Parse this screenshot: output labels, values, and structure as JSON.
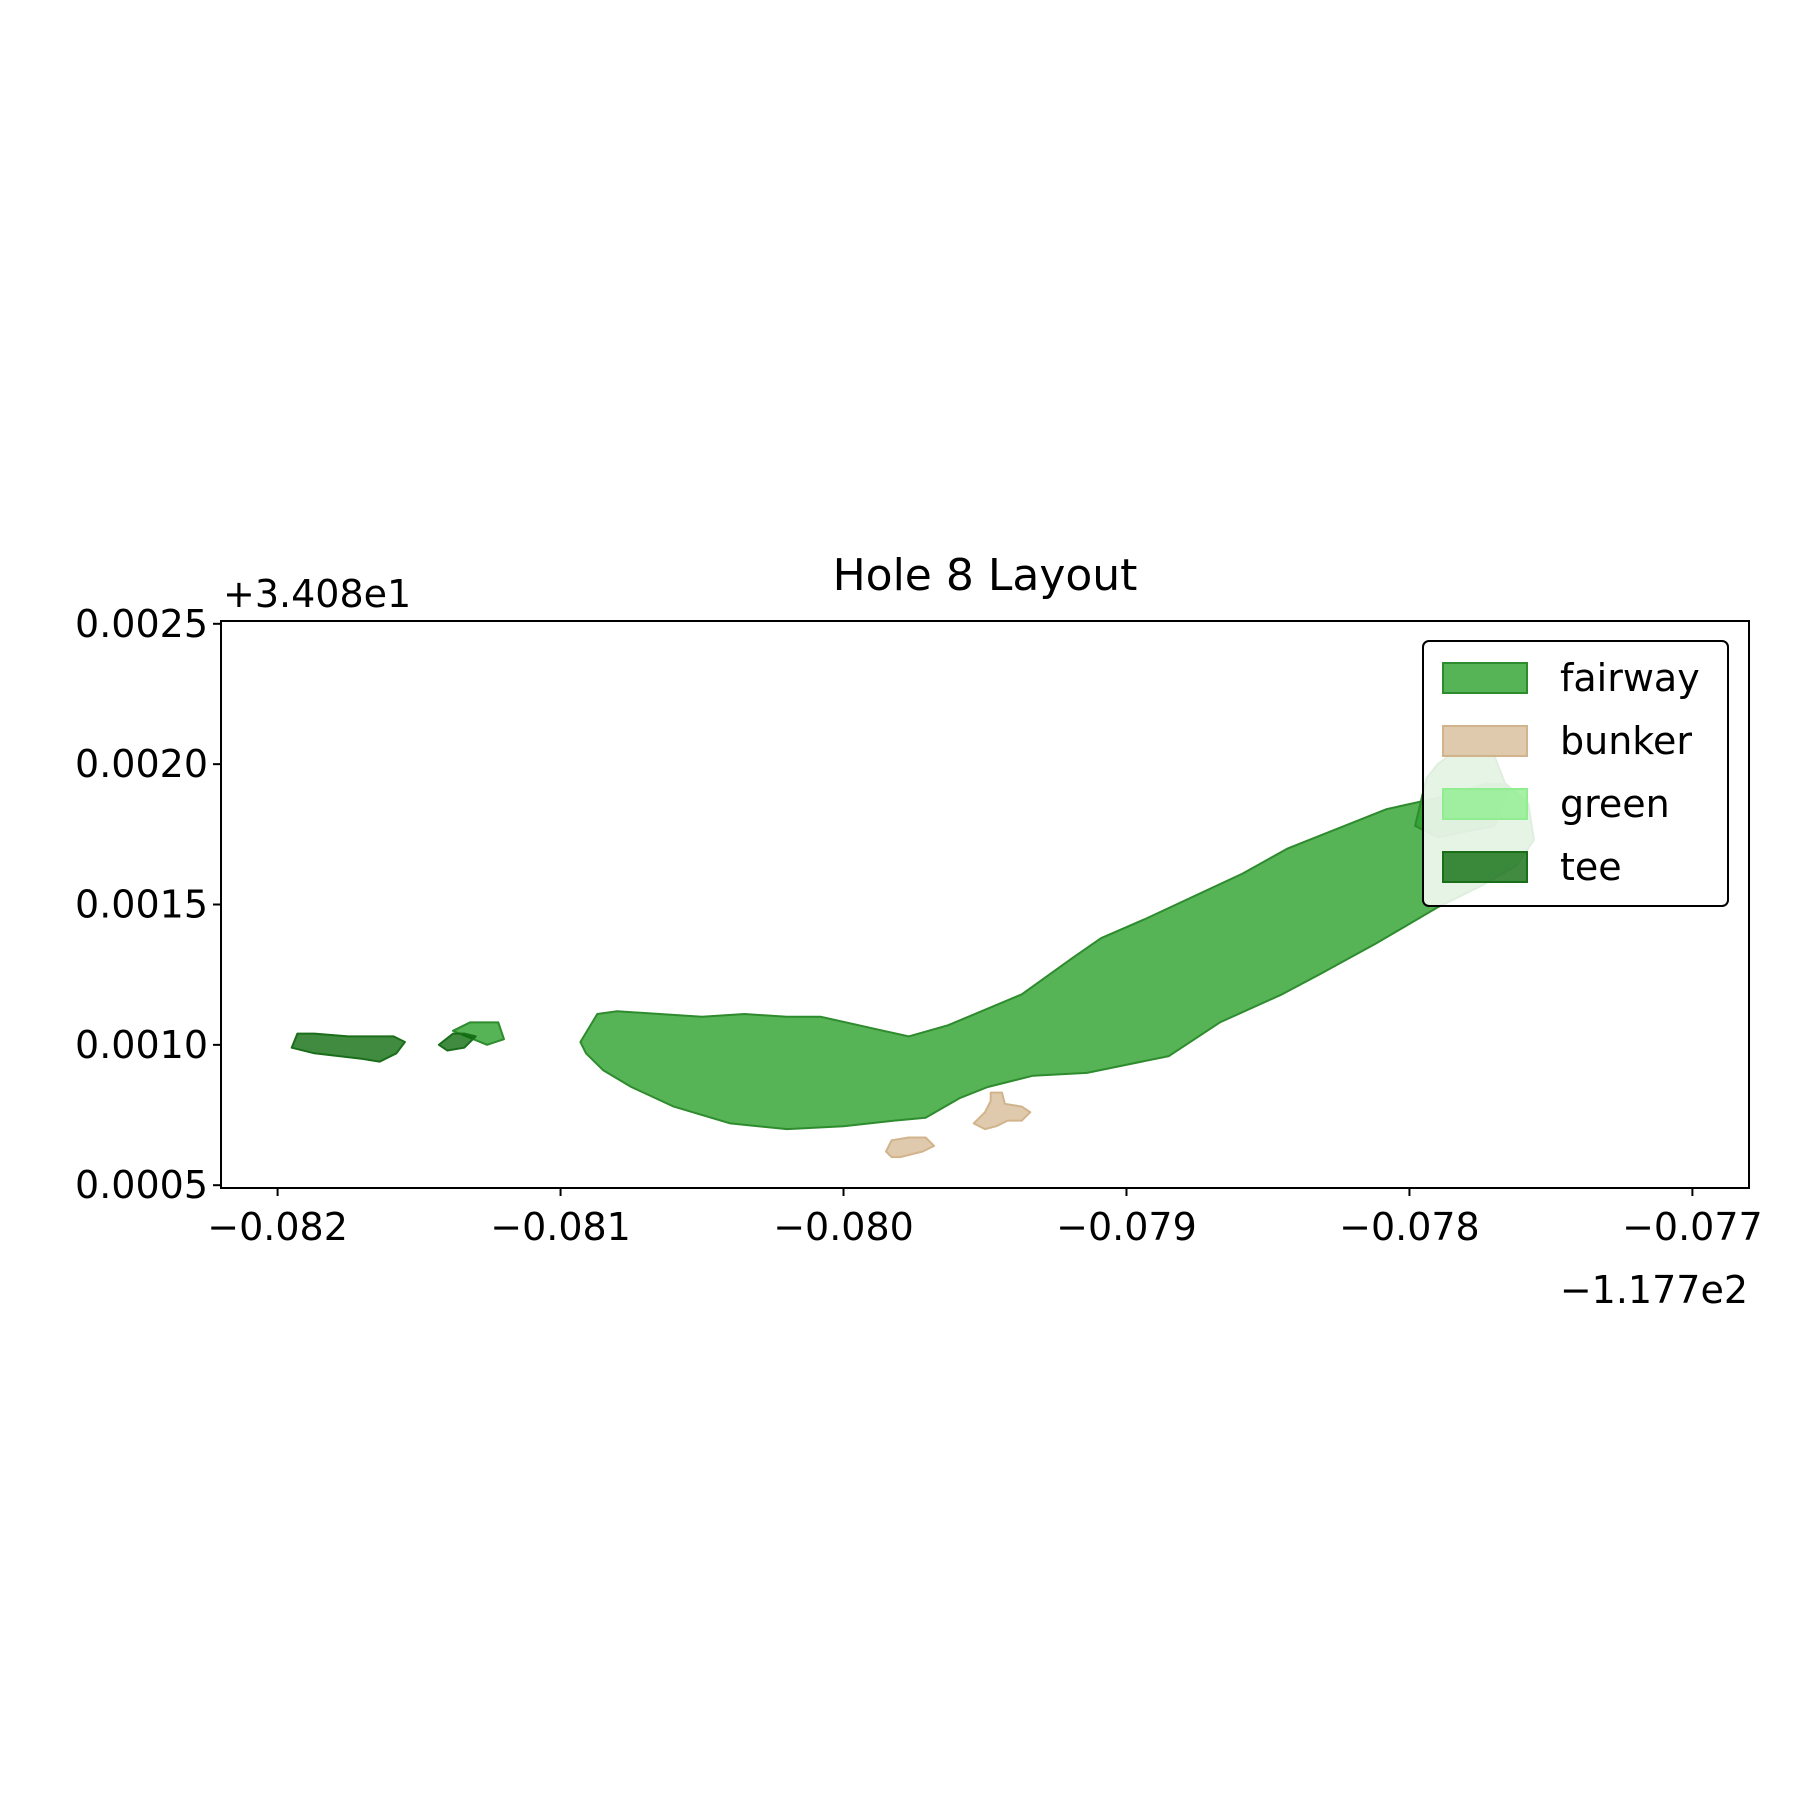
{
  "chart_data": {
    "type": "area",
    "title": "Hole 8 Layout",
    "xlabel": "",
    "ylabel": "",
    "x_offset_label": "−1.177e2",
    "y_offset_label": "+3.408e1",
    "xlim": [
      -0.0822,
      -0.0768
    ],
    "ylim": [
      0.00049,
      0.00251
    ],
    "x_ticks": [
      -0.082,
      -0.081,
      -0.08,
      -0.079,
      -0.078,
      -0.077
    ],
    "x_tick_labels": [
      "−0.082",
      "−0.081",
      "−0.080",
      "−0.079",
      "−0.078",
      "−0.077"
    ],
    "y_ticks": [
      0.0005,
      0.001,
      0.0015,
      0.002,
      0.0025
    ],
    "y_tick_labels": [
      "0.0005",
      "0.0010",
      "0.0015",
      "0.0020",
      "0.0025"
    ],
    "grid": false,
    "legend_position": "top-right",
    "legend": [
      {
        "label": "fairway",
        "fill": "#2ca02c",
        "edge": "#2e8b2e",
        "opacity": 0.8
      },
      {
        "label": "bunker",
        "fill": "#d2b48c",
        "edge": "#d2b48c",
        "opacity": 0.7
      },
      {
        "label": "green",
        "fill": "#90ee90",
        "edge": "#90ee90",
        "opacity": 0.8
      },
      {
        "label": "tee",
        "fill": "#006400",
        "edge": "#1a6e1a",
        "opacity": 0.75
      }
    ],
    "series": [
      {
        "name": "fairway",
        "polygons": [
          [
            [
              -0.08093,
              0.00101
            ],
            [
              -0.08087,
              0.00111
            ],
            [
              -0.0808,
              0.00112
            ],
            [
              -0.0805,
              0.0011
            ],
            [
              -0.08035,
              0.00111
            ],
            [
              -0.0802,
              0.0011
            ],
            [
              -0.08008,
              0.0011
            ],
            [
              -0.07977,
              0.00103
            ],
            [
              -0.07963,
              0.00107
            ],
            [
              -0.07937,
              0.00118
            ],
            [
              -0.07919,
              0.00131
            ],
            [
              -0.07909,
              0.00138
            ],
            [
              -0.07893,
              0.00145
            ],
            [
              -0.07859,
              0.00161
            ],
            [
              -0.07843,
              0.0017
            ],
            [
              -0.07818,
              0.0018
            ],
            [
              -0.07808,
              0.00184
            ],
            [
              -0.0779,
              0.00188
            ],
            [
              -0.07773,
              0.00193
            ],
            [
              -0.07766,
              0.00193
            ],
            [
              -0.07758,
              0.00186
            ],
            [
              -0.07756,
              0.00173
            ],
            [
              -0.07762,
              0.00164
            ],
            [
              -0.07774,
              0.00157
            ],
            [
              -0.0779,
              0.00149
            ],
            [
              -0.07812,
              0.00136
            ],
            [
              -0.07832,
              0.00125
            ],
            [
              -0.07845,
              0.00118
            ],
            [
              -0.07867,
              0.00108
            ],
            [
              -0.07885,
              0.00096
            ],
            [
              -0.07914,
              0.0009
            ],
            [
              -0.07933,
              0.00089
            ],
            [
              -0.07949,
              0.00085
            ],
            [
              -0.07959,
              0.00081
            ],
            [
              -0.07971,
              0.00074
            ],
            [
              -0.07982,
              0.00073
            ],
            [
              -0.08,
              0.00071
            ],
            [
              -0.0802,
              0.0007
            ],
            [
              -0.0804,
              0.00072
            ],
            [
              -0.0806,
              0.00078
            ],
            [
              -0.08075,
              0.00085
            ],
            [
              -0.08085,
              0.00091
            ],
            [
              -0.08091,
              0.00097
            ]
          ],
          [
            [
              -0.07798,
              0.00178
            ],
            [
              -0.07794,
              0.00195
            ],
            [
              -0.0779,
              0.002
            ],
            [
              -0.07786,
              0.00203
            ],
            [
              -0.0777,
              0.00203
            ],
            [
              -0.07765,
              0.0019
            ],
            [
              -0.0777,
              0.00178
            ],
            [
              -0.0779,
              0.00174
            ]
          ],
          [
            [
              -0.0812,
              0.00102
            ],
            [
              -0.08122,
              0.00108
            ],
            [
              -0.08132,
              0.00108
            ],
            [
              -0.08138,
              0.00105
            ],
            [
              -0.08126,
              0.001
            ]
          ]
        ]
      },
      {
        "name": "bunker",
        "polygons": [
          [
            [
              -0.07985,
              0.00062
            ],
            [
              -0.07983,
              0.00066
            ],
            [
              -0.07977,
              0.00067
            ],
            [
              -0.07971,
              0.00067
            ],
            [
              -0.07968,
              0.00064
            ],
            [
              -0.07972,
              0.00062
            ],
            [
              -0.0798,
              0.0006
            ],
            [
              -0.07983,
              0.0006
            ]
          ],
          [
            [
              -0.07954,
              0.00072
            ],
            [
              -0.0795,
              0.00076
            ],
            [
              -0.07948,
              0.0008
            ],
            [
              -0.07948,
              0.00083
            ],
            [
              -0.07944,
              0.00083
            ],
            [
              -0.07943,
              0.00079
            ],
            [
              -0.07937,
              0.00078
            ],
            [
              -0.07934,
              0.00076
            ],
            [
              -0.07937,
              0.00073
            ],
            [
              -0.07942,
              0.00073
            ],
            [
              -0.07946,
              0.00071
            ],
            [
              -0.0795,
              0.0007
            ]
          ]
        ]
      },
      {
        "name": "green",
        "polygons": []
      },
      {
        "name": "tee",
        "polygons": [
          [
            [
              -0.08193,
              0.00104
            ],
            [
              -0.08187,
              0.00104
            ],
            [
              -0.08175,
              0.00103
            ],
            [
              -0.08159,
              0.00103
            ],
            [
              -0.08155,
              0.00101
            ],
            [
              -0.08158,
              0.00097
            ],
            [
              -0.08164,
              0.00094
            ],
            [
              -0.0817,
              0.00095
            ],
            [
              -0.08187,
              0.00097
            ],
            [
              -0.08195,
              0.00099
            ]
          ],
          [
            [
              -0.08143,
              0.001
            ],
            [
              -0.08138,
              0.00104
            ],
            [
              -0.08134,
              0.00104
            ],
            [
              -0.0813,
              0.00103
            ],
            [
              -0.08134,
              0.00099
            ],
            [
              -0.0814,
              0.00098
            ]
          ]
        ]
      }
    ]
  }
}
